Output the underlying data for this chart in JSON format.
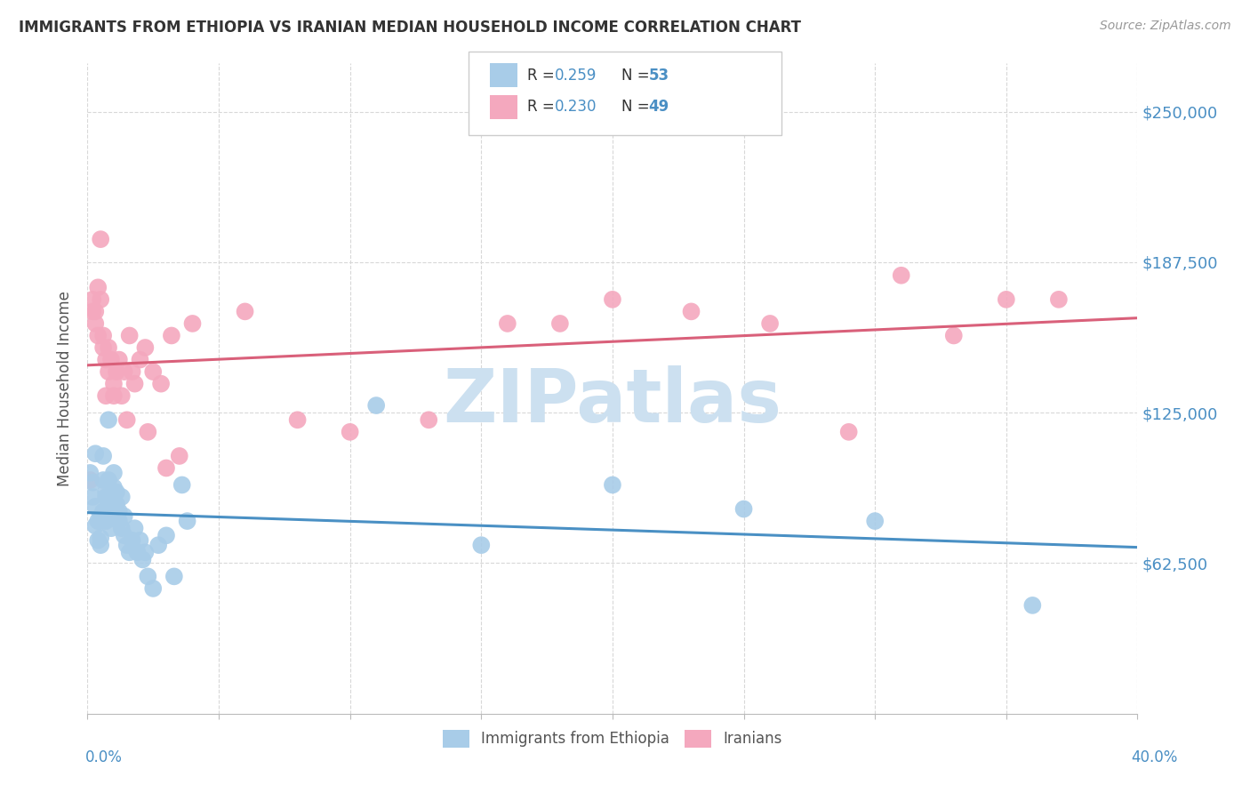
{
  "title": "IMMIGRANTS FROM ETHIOPIA VS IRANIAN MEDIAN HOUSEHOLD INCOME CORRELATION CHART",
  "source": "Source: ZipAtlas.com",
  "ylabel": "Median Household Income",
  "ytick_labels": [
    "$62,500",
    "$125,000",
    "$187,500",
    "$250,000"
  ],
  "ytick_values": [
    62500,
    125000,
    187500,
    250000
  ],
  "ymin": 0,
  "ymax": 270000,
  "xmin": 0.0,
  "xmax": 0.4,
  "legend_r1": "0.259",
  "legend_n1": "53",
  "legend_r2": "0.230",
  "legend_n2": "49",
  "blue_scatter_color": "#a8cce8",
  "pink_scatter_color": "#f4a8be",
  "blue_line_color": "#4a90c4",
  "pink_line_color": "#d9607a",
  "axis_label_color": "#4a8fc4",
  "title_color": "#333333",
  "source_color": "#999999",
  "background_color": "#ffffff",
  "grid_color": "#d8d8d8",
  "watermark_color": "#cce0f0",
  "legend_text_color": "#333333",
  "legend_value_color": "#4a8fc4",
  "ethiopia_x": [
    0.001,
    0.002,
    0.002,
    0.003,
    0.003,
    0.003,
    0.004,
    0.004,
    0.005,
    0.005,
    0.005,
    0.006,
    0.006,
    0.006,
    0.007,
    0.007,
    0.007,
    0.008,
    0.008,
    0.008,
    0.009,
    0.009,
    0.01,
    0.01,
    0.011,
    0.011,
    0.012,
    0.012,
    0.013,
    0.013,
    0.014,
    0.014,
    0.015,
    0.016,
    0.017,
    0.018,
    0.019,
    0.02,
    0.021,
    0.022,
    0.023,
    0.025,
    0.027,
    0.03,
    0.033,
    0.036,
    0.038,
    0.11,
    0.15,
    0.2,
    0.25,
    0.3,
    0.36
  ],
  "ethiopia_y": [
    100000,
    96000,
    90000,
    108000,
    78000,
    86000,
    72000,
    80000,
    73000,
    82000,
    70000,
    97000,
    107000,
    84000,
    90000,
    92000,
    80000,
    122000,
    97000,
    87000,
    77000,
    82000,
    94000,
    100000,
    87000,
    92000,
    80000,
    84000,
    90000,
    77000,
    82000,
    74000,
    70000,
    67000,
    72000,
    77000,
    67000,
    72000,
    64000,
    67000,
    57000,
    52000,
    70000,
    74000,
    57000,
    95000,
    80000,
    128000,
    70000,
    95000,
    85000,
    80000,
    45000
  ],
  "iranians_x": [
    0.001,
    0.002,
    0.002,
    0.003,
    0.003,
    0.004,
    0.004,
    0.005,
    0.005,
    0.006,
    0.006,
    0.007,
    0.007,
    0.008,
    0.008,
    0.009,
    0.01,
    0.01,
    0.011,
    0.012,
    0.013,
    0.014,
    0.015,
    0.016,
    0.017,
    0.018,
    0.02,
    0.022,
    0.023,
    0.025,
    0.028,
    0.03,
    0.032,
    0.035,
    0.04,
    0.06,
    0.08,
    0.1,
    0.13,
    0.16,
    0.18,
    0.2,
    0.23,
    0.26,
    0.29,
    0.31,
    0.33,
    0.35,
    0.37
  ],
  "iranians_y": [
    97000,
    172000,
    167000,
    167000,
    162000,
    157000,
    177000,
    197000,
    172000,
    157000,
    152000,
    147000,
    132000,
    142000,
    152000,
    147000,
    132000,
    137000,
    142000,
    147000,
    132000,
    142000,
    122000,
    157000,
    142000,
    137000,
    147000,
    152000,
    117000,
    142000,
    137000,
    102000,
    157000,
    107000,
    162000,
    167000,
    122000,
    117000,
    122000,
    162000,
    162000,
    172000,
    167000,
    162000,
    117000,
    182000,
    157000,
    172000,
    172000
  ]
}
